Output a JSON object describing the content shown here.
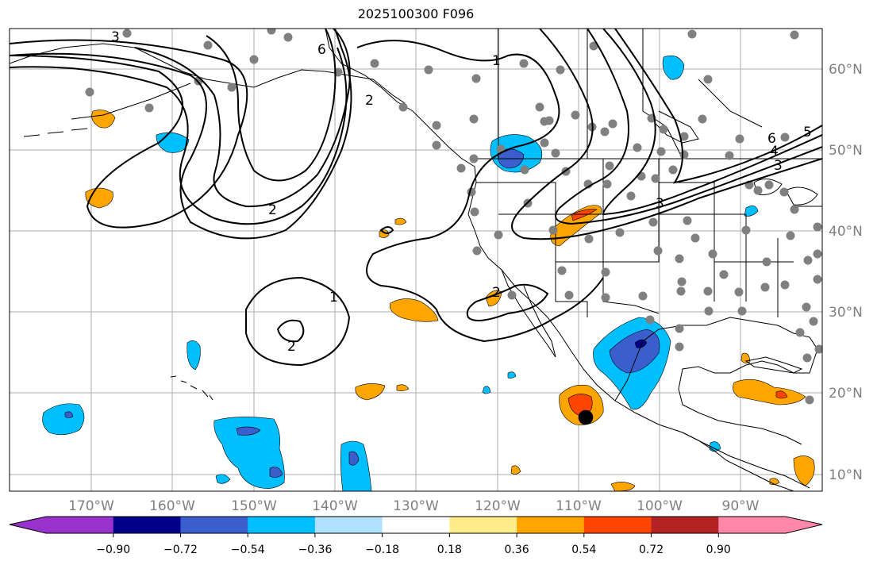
{
  "title": "2025100300 F096",
  "lon_labels": [
    "170°W",
    "160°W",
    "150°W",
    "140°W",
    "130°W",
    "120°W",
    "110°W",
    "100°W",
    "90°W"
  ],
  "lat_labels": [
    "60°N",
    "50°N",
    "40°N",
    "30°N",
    "20°N",
    "10°N"
  ],
  "colorbar": {
    "colors": [
      "#9932cc",
      "#00008b",
      "#3a5fcd",
      "#00bfff",
      "#b0e2ff",
      "#ffffff",
      "#ffec8b",
      "#ffa500",
      "#ff4500",
      "#b22222",
      "#ff88aa"
    ],
    "ticks": [
      "−0.90",
      "−0.72",
      "−0.54",
      "−0.36",
      "−0.18",
      "0.18",
      "0.36",
      "0.54",
      "0.72",
      "0.90"
    ]
  },
  "contour_labels": [
    "3",
    "6",
    "1",
    "2",
    "1",
    "2",
    "6",
    "5",
    "4",
    "3",
    "2",
    "3",
    "2"
  ],
  "colors": {
    "coast": "#000000",
    "grid": "#999999",
    "station": "#808080",
    "contour": "#000000"
  }
}
